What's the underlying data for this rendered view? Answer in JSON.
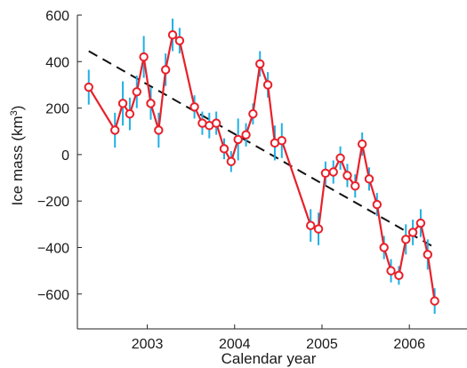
{
  "chart_data": {
    "type": "line",
    "xlabel": "Calendar year",
    "ylabel_text": "Ice mass (km",
    "ylabel_sup": "3",
    "ylabel_close": ")",
    "xlim": [
      2002.2,
      2006.66
    ],
    "ylim": [
      -750,
      600
    ],
    "xticks": [
      2003,
      2004,
      2005,
      2006
    ],
    "xtick_labels": [
      "2003",
      "2004",
      "2005",
      "2006"
    ],
    "yticks": [
      600,
      400,
      200,
      0,
      -200,
      -400,
      -600
    ],
    "ytick_labels": [
      "600",
      "400",
      "200",
      "0",
      "−200",
      "−400",
      "−600"
    ],
    "colors": {
      "series": "#e8202a",
      "error_bars": "#1fb0e6",
      "trend": "#111111",
      "axis": "#222222"
    },
    "series": [
      {
        "x": [
          2002.33,
          2002.63,
          2002.72,
          2002.8,
          2002.88,
          2002.96,
          2003.04,
          2003.13,
          2003.21,
          2003.29,
          2003.37,
          2003.54,
          2003.63,
          2003.71,
          2003.79,
          2003.88,
          2003.96,
          2004.04,
          2004.13,
          2004.21,
          2004.29,
          2004.38,
          2004.46,
          2004.54,
          2004.87,
          2004.96,
          2005.04,
          2005.13,
          2005.21,
          2005.29,
          2005.38,
          2005.46,
          2005.54,
          2005.63,
          2005.71,
          2005.79,
          2005.88,
          2005.96,
          2006.04,
          2006.13,
          2006.21,
          2006.29
        ],
        "y": [
          290,
          105,
          220,
          175,
          270,
          420,
          220,
          105,
          365,
          515,
          490,
          205,
          135,
          125,
          135,
          25,
          -30,
          65,
          85,
          175,
          390,
          300,
          50,
          60,
          -305,
          -320,
          -80,
          -75,
          -15,
          -90,
          -135,
          45,
          -105,
          -215,
          -400,
          -500,
          -520,
          -365,
          -335,
          -295,
          -430,
          -630
        ],
        "err": [
          75,
          75,
          95,
          70,
          70,
          90,
          70,
          75,
          70,
          70,
          55,
          50,
          50,
          55,
          50,
          45,
          45,
          90,
          50,
          45,
          55,
          55,
          75,
          75,
          70,
          70,
          50,
          50,
          50,
          50,
          50,
          50,
          50,
          50,
          50,
          50,
          40,
          65,
          55,
          60,
          65,
          55
        ]
      }
    ],
    "trend": {
      "x": [
        2002.33,
        2006.29
      ],
      "y": [
        445,
        -400
      ]
    }
  }
}
